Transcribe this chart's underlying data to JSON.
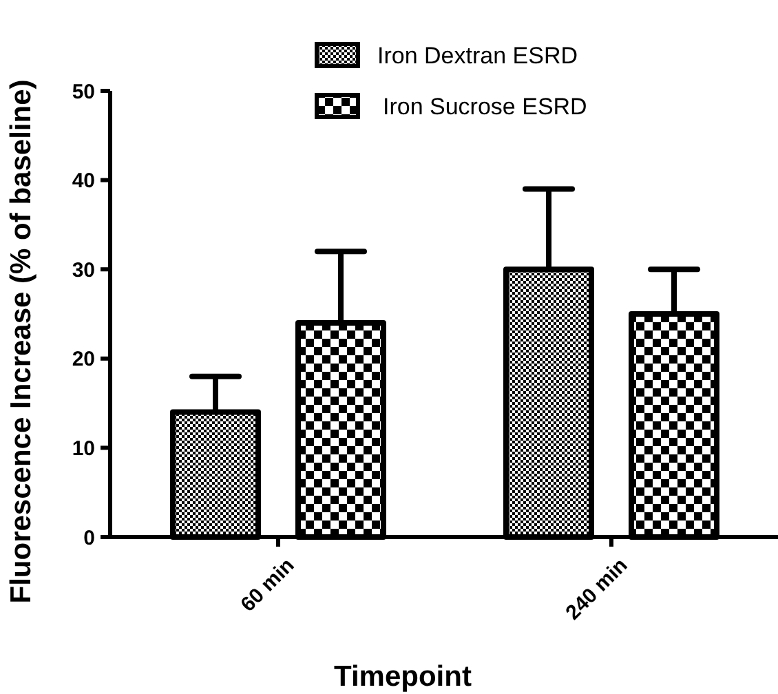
{
  "chart_data": {
    "type": "bar",
    "xlabel": "Timepoint",
    "ylabel": "Fluorescence Increase (% of baseline)",
    "categories": [
      "60 min",
      "240 min"
    ],
    "series": [
      {
        "name": "Iron Dextran ESRD",
        "color": "#000000",
        "values": [
          14,
          30
        ],
        "errors": [
          [
            14,
            18
          ],
          [
            30,
            39
          ]
        ]
      },
      {
        "name": "Iron Sucrose ESRD",
        "color": "#000000",
        "values": [
          24,
          25
        ],
        "errors": [
          [
            24,
            32
          ],
          [
            25,
            30
          ]
        ]
      }
    ],
    "ylim": [
      0,
      50
    ],
    "yticks": [
      0,
      10,
      20,
      30,
      40,
      50
    ],
    "grid": false,
    "legend": "top right"
  }
}
